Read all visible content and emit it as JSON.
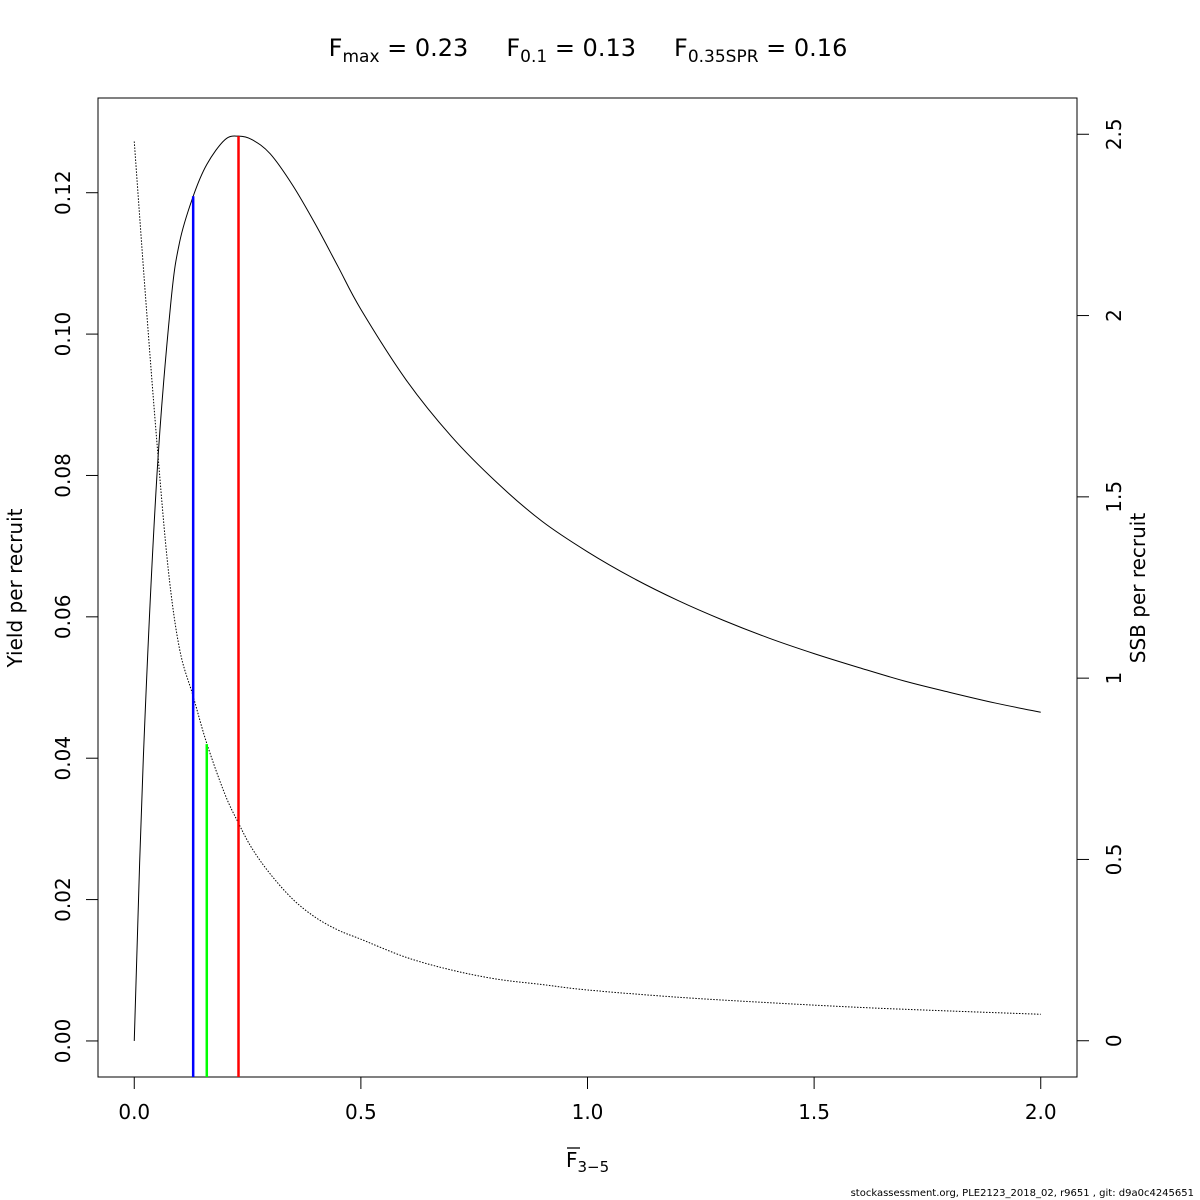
{
  "chart_data": {
    "type": "line",
    "title": {
      "fmax": {
        "base": "F",
        "sub": "max",
        "eq": " = 0.23"
      },
      "f01": {
        "base": "F",
        "sub": "0.1",
        "eq": " = 0.13"
      },
      "f035": {
        "base": "F",
        "sub": "0.35SPR",
        "eq": " = 0.16"
      }
    },
    "xlabel": {
      "base": "F",
      "sub": "3−5",
      "overline": true
    },
    "ylabel_left": "Yield per recruit",
    "ylabel_right": "SSB per recruit",
    "xlim": [
      -0.08,
      2.08
    ],
    "ylim_left": [
      -0.0051,
      0.1334
    ],
    "ylim_right": [
      -0.1,
      2.6
    ],
    "x_ticks": [
      0,
      0.5,
      1,
      1.5,
      2
    ],
    "x_tick_labels": [
      "0.0",
      "0.5",
      "1.0",
      "1.5",
      "2.0"
    ],
    "y_left_ticks": [
      0,
      0.02,
      0.04,
      0.06,
      0.08,
      0.1,
      0.12
    ],
    "y_left_tick_labels": [
      "0.00",
      "0.02",
      "0.04",
      "0.06",
      "0.08",
      "0.10",
      "0.12"
    ],
    "y_right_ticks": [
      0,
      0.5,
      1,
      1.5,
      2,
      2.5
    ],
    "y_right_tick_labels": [
      "0",
      "0.5",
      "1",
      "1.5",
      "2",
      "2.5"
    ],
    "grid": false,
    "series": [
      {
        "axis": "left",
        "style": "solid",
        "color": "#000000",
        "x": [
          0,
          0.02,
          0.05,
          0.08,
          0.1,
          0.13,
          0.16,
          0.2,
          0.23,
          0.26,
          0.3,
          0.35,
          0.4,
          0.45,
          0.5,
          0.6,
          0.7,
          0.8,
          0.9,
          1.0,
          1.1,
          1.2,
          1.3,
          1.4,
          1.5,
          1.6,
          1.7,
          1.8,
          1.9,
          2.0
        ],
        "values": [
          0,
          0.04,
          0.08,
          0.104,
          0.113,
          0.1195,
          0.124,
          0.1275,
          0.128,
          0.1275,
          0.1255,
          0.121,
          0.1155,
          0.1095,
          0.1035,
          0.0935,
          0.0855,
          0.079,
          0.0735,
          0.0692,
          0.0655,
          0.0623,
          0.0595,
          0.057,
          0.0548,
          0.0528,
          0.0509,
          0.0493,
          0.0478,
          0.0465
        ]
      },
      {
        "axis": "right",
        "style": "dotted",
        "color": "#000000",
        "x": [
          0,
          0.025,
          0.05,
          0.075,
          0.1,
          0.13,
          0.16,
          0.2,
          0.23,
          0.26,
          0.3,
          0.35,
          0.4,
          0.45,
          0.5,
          0.6,
          0.7,
          0.8,
          0.9,
          1.0,
          1.2,
          1.4,
          1.6,
          1.8,
          2.0
        ],
        "values": [
          2.48,
          2.05,
          1.65,
          1.3,
          1.08,
          0.95,
          0.82,
          0.68,
          0.6,
          0.53,
          0.46,
          0.39,
          0.34,
          0.305,
          0.28,
          0.23,
          0.195,
          0.17,
          0.155,
          0.14,
          0.12,
          0.105,
          0.092,
          0.082,
          0.073
        ]
      }
    ],
    "reference_lines": [
      {
        "name": "F0.1",
        "x": 0.13,
        "y_top": 0.1195,
        "color": "#0000ff"
      },
      {
        "name": "F0.35SPR",
        "x": 0.16,
        "y_top": 0.042,
        "color": "#00ff00"
      },
      {
        "name": "Fmax",
        "x": 0.23,
        "y_top": 0.128,
        "color": "#ff0000"
      }
    ]
  },
  "footer": "stockassessment.org, PLE2123_2018_02, r9651 , git: d9a0c4245651"
}
